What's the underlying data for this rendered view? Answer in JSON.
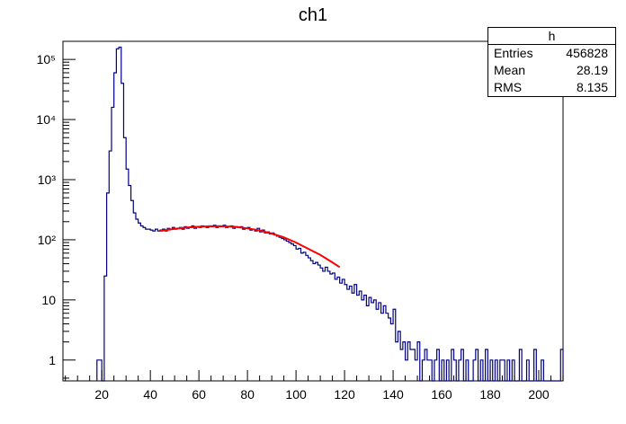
{
  "chart_data": {
    "type": "histogram",
    "title": "ch1",
    "xlabel": "",
    "ylabel": "",
    "xlim": [
      4,
      210
    ],
    "ylim": [
      0.45,
      200000
    ],
    "y_scale": "log",
    "x_ticks": [
      20,
      40,
      60,
      80,
      100,
      120,
      140,
      160,
      180,
      200
    ],
    "y_tick_labels": [
      "1",
      "10",
      "10²",
      "10³",
      "10⁴",
      "10⁵"
    ],
    "colors": {
      "histogram": "#000080",
      "fit": "#ff0000"
    },
    "stats_box": {
      "name": "h",
      "entries_label": "Entries",
      "entries": "456828",
      "mean_label": "Mean",
      "mean": "28.19",
      "rms_label": "RMS",
      "rms": "8.135"
    },
    "series": [
      {
        "type": "step",
        "bins": [
          [
            18,
            1
          ],
          [
            19,
            1
          ],
          [
            20,
            0.45
          ],
          [
            21,
            25
          ],
          [
            22,
            600
          ],
          [
            23,
            3000
          ],
          [
            24,
            16000
          ],
          [
            25,
            60000
          ],
          [
            26,
            150000
          ],
          [
            27,
            160000
          ],
          [
            28,
            40000
          ],
          [
            29,
            5000
          ],
          [
            30,
            1500
          ],
          [
            31,
            800
          ],
          [
            32,
            450
          ],
          [
            33,
            280
          ],
          [
            34,
            220
          ],
          [
            35,
            190
          ],
          [
            36,
            170
          ],
          [
            37,
            160
          ],
          [
            38,
            150
          ],
          [
            39,
            150
          ],
          [
            40,
            145
          ],
          [
            41,
            140
          ],
          [
            42,
            150
          ],
          [
            43,
            140
          ],
          [
            44,
            145
          ],
          [
            45,
            150
          ],
          [
            46,
            140
          ],
          [
            47,
            155
          ],
          [
            48,
            150
          ],
          [
            49,
            160
          ],
          [
            50,
            150
          ],
          [
            51,
            155
          ],
          [
            52,
            160
          ],
          [
            53,
            150
          ],
          [
            54,
            165
          ],
          [
            55,
            155
          ],
          [
            56,
            160
          ],
          [
            57,
            170
          ],
          [
            58,
            155
          ],
          [
            59,
            165
          ],
          [
            60,
            160
          ],
          [
            61,
            170
          ],
          [
            62,
            165
          ],
          [
            63,
            160
          ],
          [
            64,
            170
          ],
          [
            65,
            165
          ],
          [
            66,
            175
          ],
          [
            67,
            160
          ],
          [
            68,
            170
          ],
          [
            69,
            165
          ],
          [
            70,
            175
          ],
          [
            71,
            160
          ],
          [
            72,
            165
          ],
          [
            73,
            170
          ],
          [
            74,
            155
          ],
          [
            75,
            165
          ],
          [
            76,
            160
          ],
          [
            77,
            165
          ],
          [
            78,
            150
          ],
          [
            79,
            155
          ],
          [
            80,
            160
          ],
          [
            81,
            145
          ],
          [
            82,
            150
          ],
          [
            83,
            140
          ],
          [
            84,
            155
          ],
          [
            85,
            135
          ],
          [
            86,
            145
          ],
          [
            87,
            130
          ],
          [
            88,
            135
          ],
          [
            89,
            125
          ],
          [
            90,
            130
          ],
          [
            91,
            120
          ],
          [
            92,
            115
          ],
          [
            93,
            110
          ],
          [
            94,
            105
          ],
          [
            95,
            100
          ],
          [
            96,
            95
          ],
          [
            97,
            90
          ],
          [
            98,
            85
          ],
          [
            99,
            80
          ],
          [
            100,
            70
          ],
          [
            101,
            72
          ],
          [
            102,
            60
          ],
          [
            103,
            62
          ],
          [
            104,
            55
          ],
          [
            105,
            50
          ],
          [
            106,
            45
          ],
          [
            107,
            40
          ],
          [
            108,
            42
          ],
          [
            109,
            38
          ],
          [
            110,
            34
          ],
          [
            111,
            30
          ],
          [
            112,
            35
          ],
          [
            113,
            30
          ],
          [
            114,
            27
          ],
          [
            115,
            28
          ],
          [
            116,
            22
          ],
          [
            117,
            24
          ],
          [
            118,
            19
          ],
          [
            119,
            22
          ],
          [
            120,
            18
          ],
          [
            121,
            15
          ],
          [
            122,
            17
          ],
          [
            123,
            13
          ],
          [
            124,
            18
          ],
          [
            125,
            12
          ],
          [
            126,
            14
          ],
          [
            127,
            10
          ],
          [
            128,
            12
          ],
          [
            129,
            8
          ],
          [
            130,
            11
          ],
          [
            131,
            9
          ],
          [
            132,
            10
          ],
          [
            133,
            7
          ],
          [
            134,
            9
          ],
          [
            135,
            6
          ],
          [
            136,
            8
          ],
          [
            137,
            6
          ],
          [
            138,
            5
          ],
          [
            139,
            4
          ],
          [
            140,
            7
          ],
          [
            141,
            2
          ],
          [
            142,
            3
          ],
          [
            143,
            1.5
          ],
          [
            144,
            2
          ],
          [
            145,
            1
          ],
          [
            146,
            2
          ],
          [
            147,
            1.5
          ],
          [
            148,
            1.5
          ],
          [
            149,
            1
          ],
          [
            150,
            2
          ],
          [
            151,
            0.45
          ],
          [
            152,
            1
          ],
          [
            153,
            1.5
          ],
          [
            154,
            1
          ],
          [
            155,
            1
          ],
          [
            156,
            0.45
          ],
          [
            157,
            1
          ],
          [
            158,
            1.5
          ],
          [
            159,
            0.45
          ],
          [
            160,
            1
          ],
          [
            161,
            0.45
          ],
          [
            162,
            1
          ],
          [
            163,
            0.45
          ],
          [
            164,
            1.5
          ],
          [
            165,
            1
          ],
          [
            166,
            0.45
          ],
          [
            167,
            1
          ],
          [
            168,
            1.5
          ],
          [
            169,
            0.45
          ],
          [
            170,
            1
          ],
          [
            171,
            0.45
          ],
          [
            172,
            0.45
          ],
          [
            173,
            1
          ],
          [
            174,
            1.5
          ],
          [
            175,
            0.45
          ],
          [
            176,
            1
          ],
          [
            177,
            0.45
          ],
          [
            178,
            1.5
          ],
          [
            179,
            0.45
          ],
          [
            180,
            1
          ],
          [
            181,
            0.45
          ],
          [
            182,
            1
          ],
          [
            183,
            0.45
          ],
          [
            184,
            1
          ],
          [
            185,
            1
          ],
          [
            186,
            0.45
          ],
          [
            187,
            1
          ],
          [
            188,
            0.45
          ],
          [
            189,
            1
          ],
          [
            190,
            0.45
          ],
          [
            191,
            0.45
          ],
          [
            192,
            1.5
          ],
          [
            193,
            0.45
          ],
          [
            194,
            0.45
          ],
          [
            195,
            1
          ],
          [
            196,
            0.45
          ],
          [
            197,
            0.45
          ],
          [
            198,
            1.5
          ],
          [
            199,
            0.45
          ],
          [
            200,
            0.45
          ],
          [
            201,
            1
          ],
          [
            202,
            0.45
          ],
          [
            203,
            0.45
          ],
          [
            204,
            0.45
          ],
          [
            205,
            0.45
          ],
          [
            206,
            0.45
          ],
          [
            207,
            0.45
          ],
          [
            208,
            0.45
          ],
          [
            209,
            1.5
          ]
        ]
      },
      {
        "type": "line",
        "x": [
          44,
          50,
          55,
          60,
          65,
          70,
          75,
          80,
          85,
          90,
          95,
          100,
          105,
          110,
          115,
          118
        ],
        "y": [
          140,
          152,
          160,
          165,
          168,
          168,
          164,
          155,
          143,
          127,
          110,
          90,
          71,
          56,
          42,
          35
        ]
      }
    ]
  }
}
